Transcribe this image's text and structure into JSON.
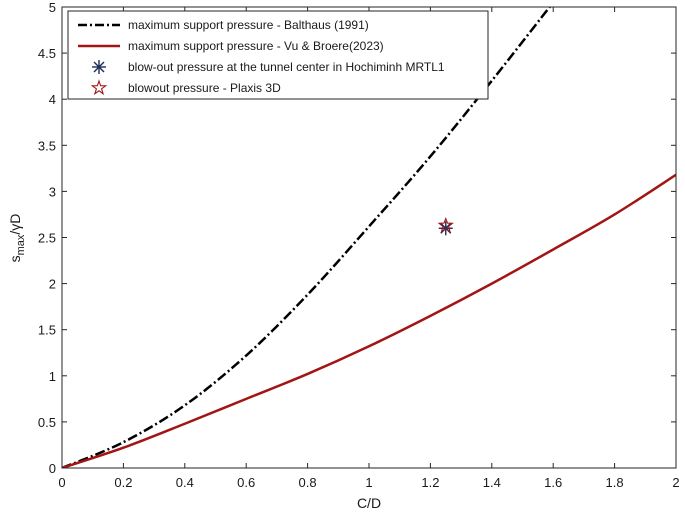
{
  "chart_data": {
    "type": "line",
    "xlabel": "C/D",
    "ylabel_main": "s",
    "ylabel_sub": "max",
    "ylabel_tail": "/γD",
    "xlim": [
      0,
      2
    ],
    "ylim": [
      0,
      5
    ],
    "xticks": [
      "0",
      "0.2",
      "0.4",
      "0.6",
      "0.8",
      "1",
      "1.2",
      "1.4",
      "1.6",
      "1.8",
      "2"
    ],
    "yticks": [
      "0",
      "0.5",
      "1",
      "1.5",
      "2",
      "2.5",
      "3",
      "3.5",
      "4",
      "4.5",
      "5"
    ],
    "grid": false,
    "legend_position": "top-left",
    "series": [
      {
        "name": "maximum support pressure - Balthaus (1991)",
        "kind": "line",
        "style": "dash-dot",
        "color": "#000000",
        "x": [
          0,
          0.2,
          0.4,
          0.6,
          0.8,
          1.0,
          1.2,
          1.4,
          1.6
        ],
        "y": [
          0,
          0.28,
          0.68,
          1.22,
          1.88,
          2.62,
          3.38,
          4.2,
          5.05
        ]
      },
      {
        "name": "maximum support pressure - Vu & Broere(2023)",
        "kind": "line",
        "style": "solid",
        "color": "#a31515",
        "x": [
          0,
          0.2,
          0.4,
          0.6,
          0.8,
          1.0,
          1.2,
          1.4,
          1.6,
          1.8,
          2.0
        ],
        "y": [
          0,
          0.22,
          0.48,
          0.75,
          1.02,
          1.32,
          1.65,
          2.0,
          2.37,
          2.75,
          3.18
        ]
      },
      {
        "name": "blow-out pressure at the tunnel center in Hochiminh MRTL1",
        "kind": "marker",
        "marker": "asterisk",
        "color": "#1f2d5a",
        "x": [
          1.25
        ],
        "y": [
          2.6
        ]
      },
      {
        "name": "blowout pressure - Plaxis 3D",
        "kind": "marker",
        "marker": "star",
        "color": "#a31515",
        "x": [
          1.25
        ],
        "y": [
          2.63
        ]
      }
    ]
  }
}
